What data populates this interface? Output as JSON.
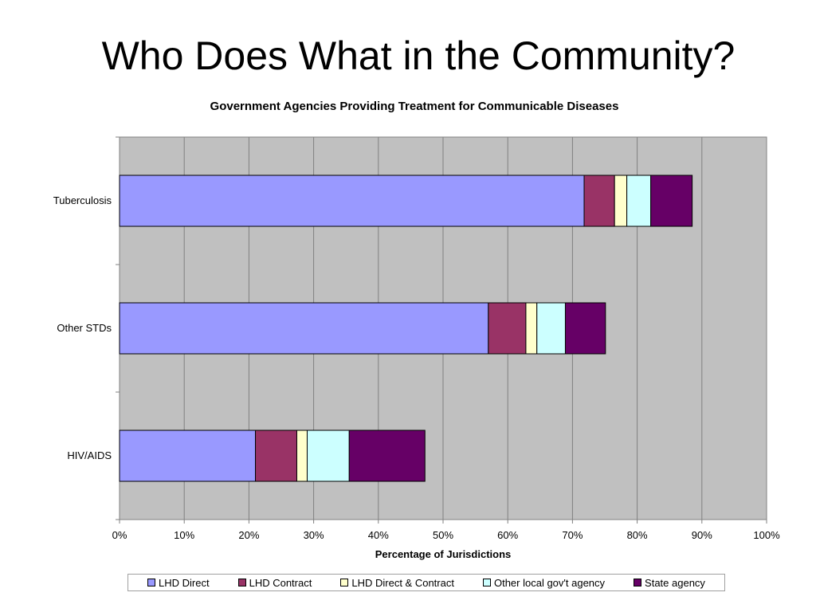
{
  "slide": {
    "title": "Who Does What in the Community?"
  },
  "chart_data": {
    "type": "bar",
    "orientation": "horizontal",
    "stacked": true,
    "title": "Government Agencies Providing Treatment for Communicable Diseases",
    "xlabel": "Percentage of Jurisdictions",
    "ylabel": "",
    "xlim": [
      0,
      1
    ],
    "x_ticks": [
      "0%",
      "10%",
      "20%",
      "30%",
      "40%",
      "50%",
      "60%",
      "70%",
      "80%",
      "90%",
      "100%"
    ],
    "categories": [
      "Tuberculosis",
      "Other STDs",
      "HIV/AIDS"
    ],
    "series": [
      {
        "name": "LHD Direct",
        "color": "#9999ff",
        "values": [
          0.718,
          0.57,
          0.21
        ]
      },
      {
        "name": "LHD Contract",
        "color": "#993366",
        "values": [
          0.047,
          0.058,
          0.064
        ]
      },
      {
        "name": "LHD Direct & Contract",
        "color": "#ffffcc",
        "values": [
          0.019,
          0.017,
          0.016
        ]
      },
      {
        "name": "Other local gov't agency",
        "color": "#ccffff",
        "values": [
          0.037,
          0.044,
          0.065
        ]
      },
      {
        "name": "State agency",
        "color": "#660066",
        "values": [
          0.064,
          0.062,
          0.117
        ]
      }
    ],
    "grid": true,
    "plot_background": "#c0c0c0",
    "legend_position": "bottom"
  }
}
